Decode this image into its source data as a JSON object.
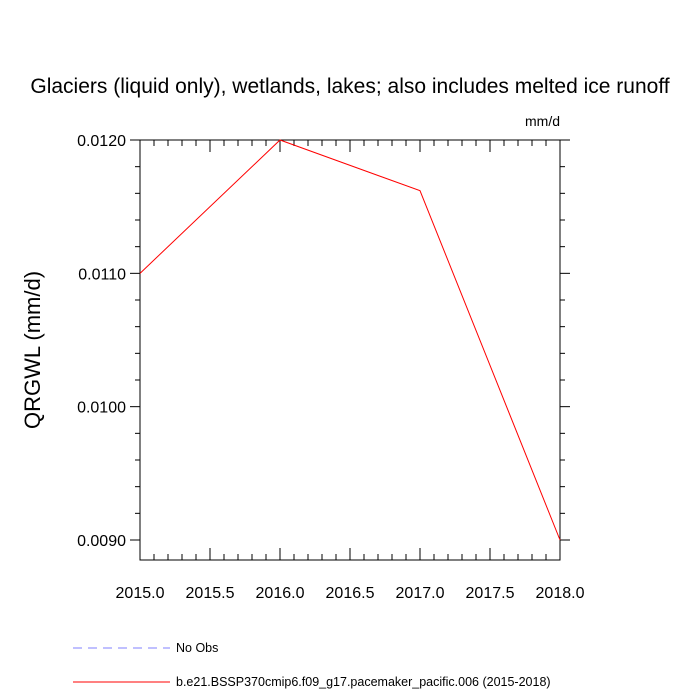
{
  "chart_data": {
    "type": "line",
    "title": "Glaciers (liquid only), wetlands, lakes; also includes melted ice runoff",
    "units": "mm/d",
    "ylabel": "QRGWL  (mm/d)",
    "xlabel": "",
    "xlim": [
      2015.0,
      2018.0
    ],
    "ylim": [
      0.00885,
      0.012
    ],
    "x_ticks": [
      "2015.0",
      "2015.5",
      "2016.0",
      "2016.5",
      "2017.0",
      "2017.5",
      "2018.0"
    ],
    "x_tick_values": [
      2015.0,
      2015.5,
      2016.0,
      2016.5,
      2017.0,
      2017.5,
      2018.0
    ],
    "y_ticks": [
      "0.0090",
      "0.0100",
      "0.0110",
      "0.0120"
    ],
    "y_tick_values": [
      0.009,
      0.01,
      0.011,
      0.012
    ],
    "grid": false,
    "legend_position": "bottom-left",
    "series": [
      {
        "name": "No Obs",
        "color": "#8080ff",
        "dashed": true,
        "x": [],
        "y": []
      },
      {
        "name": "b.e21.BSSP370cmip6.f09_g17.pacemaker_pacific.006 (2015-2018)",
        "color": "#ff0000",
        "dashed": false,
        "x": [
          2015.0,
          2016.0,
          2017.0,
          2018.0
        ],
        "y": [
          0.011,
          0.012,
          0.01162,
          0.009
        ]
      }
    ]
  }
}
